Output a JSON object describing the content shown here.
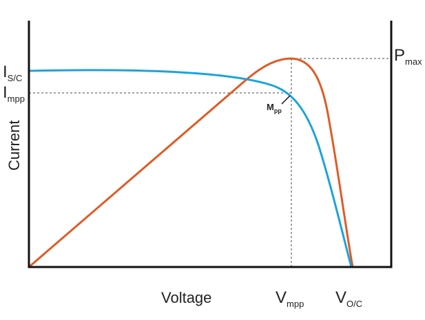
{
  "axes": {
    "x_label": "Voltage",
    "y_label": "Current"
  },
  "labels": {
    "isc": {
      "main": "I",
      "sub": "S/C"
    },
    "impp": {
      "main": "I",
      "sub": "mpp"
    },
    "pmax": {
      "main": "P",
      "sub": "max"
    },
    "mpp_point": {
      "main": "M",
      "sub": "pp"
    },
    "vmpp": {
      "main": "V",
      "sub": "mpp"
    },
    "voc": {
      "main": "V",
      "sub": "O/C"
    }
  }
}
